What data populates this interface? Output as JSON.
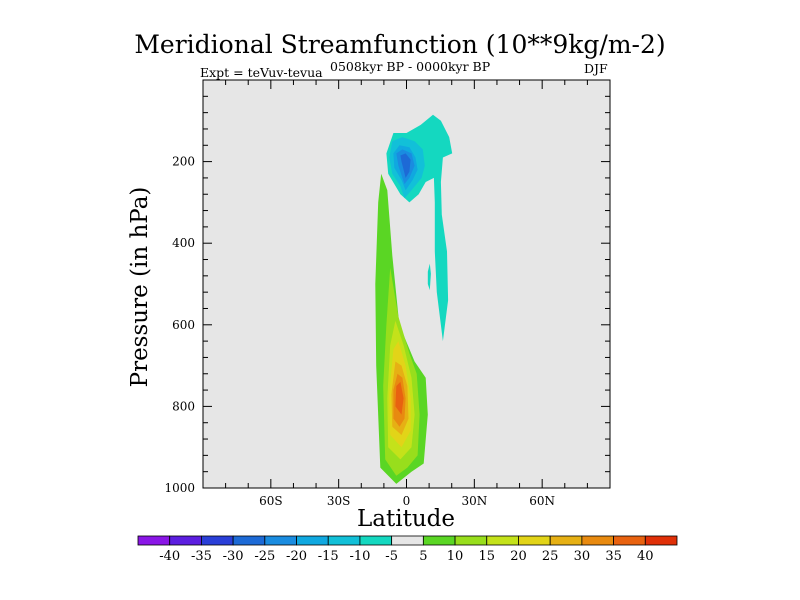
{
  "chart_data": {
    "type": "heatmap",
    "title": "Meridional Streamfunction (10**9kg/m-2)",
    "subtitle_left": "Expt = teVuv-tevua",
    "subtitle_center": "0508kyr BP - 0000kyr BP",
    "subtitle_right": "DJF",
    "xlabel": "Latitude",
    "ylabel": "Pressure (in hPa)",
    "x_ticks": [
      {
        "value": -60,
        "label": "60S"
      },
      {
        "value": -30,
        "label": "30S"
      },
      {
        "value": 0,
        "label": "0"
      },
      {
        "value": 30,
        "label": "30N"
      },
      {
        "value": 60,
        "label": "60N"
      }
    ],
    "y_ticks": [
      {
        "value": 200,
        "label": "200"
      },
      {
        "value": 400,
        "label": "400"
      },
      {
        "value": 600,
        "label": "600"
      },
      {
        "value": 800,
        "label": "800"
      },
      {
        "value": 1000,
        "label": "1000"
      }
    ],
    "xlim": [
      -90,
      90
    ],
    "ylim": [
      1000,
      0
    ],
    "background_color": "#e6e6e6",
    "colorbar": {
      "labels": [
        "-40",
        "-35",
        "-30",
        "-25",
        "-20",
        "-15",
        "-10",
        "-5",
        "5",
        "10",
        "15",
        "20",
        "25",
        "30",
        "35",
        "40"
      ],
      "colors": [
        "#8a16e6",
        "#5c1ee0",
        "#2a3fd8",
        "#1d6ad6",
        "#1a8ce0",
        "#10a8e0",
        "#12c0d8",
        "#14d8c0",
        "#e6e6e6",
        "#5ad624",
        "#98de1c",
        "#c4e21a",
        "#e2d418",
        "#e6b014",
        "#e88a10",
        "#e86210",
        "#e03008"
      ]
    },
    "contours": [
      {
        "level": "5",
        "color": "#5ad624",
        "points": [
          [
            -11.6,
            950
          ],
          [
            -13.4,
            700
          ],
          [
            -13.8,
            500
          ],
          [
            -12.5,
            300
          ],
          [
            -11.2,
            230
          ],
          [
            -8.5,
            270
          ],
          [
            -6.3,
            430
          ],
          [
            -3.2,
            600
          ],
          [
            3.6,
            690
          ],
          [
            8.5,
            730
          ],
          [
            9.4,
            820
          ],
          [
            7.6,
            940
          ],
          [
            2.2,
            960
          ],
          [
            -4.5,
            990
          ]
        ]
      },
      {
        "level": "10",
        "color": "#98de1c",
        "points": [
          [
            -9.4,
            930
          ],
          [
            -10.3,
            750
          ],
          [
            -8.9,
            600
          ],
          [
            -7.2,
            460
          ],
          [
            -3.6,
            580
          ],
          [
            1.3,
            670
          ],
          [
            4.5,
            720
          ],
          [
            5.8,
            820
          ],
          [
            4.9,
            920
          ],
          [
            0.4,
            950
          ],
          [
            -4.5,
            970
          ]
        ]
      },
      {
        "level": "15",
        "color": "#c4e21a",
        "points": [
          [
            -8.1,
            900
          ],
          [
            -8.5,
            780
          ],
          [
            -7.2,
            650
          ],
          [
            -4.9,
            590
          ],
          [
            -1.3,
            650
          ],
          [
            2.2,
            730
          ],
          [
            3.6,
            820
          ],
          [
            2.2,
            900
          ],
          [
            -2.7,
            930
          ]
        ]
      },
      {
        "level": "20",
        "color": "#e2d418",
        "points": [
          [
            -7.2,
            870
          ],
          [
            -7.6,
            770
          ],
          [
            -5.8,
            660
          ],
          [
            -3.6,
            640
          ],
          [
            -0.4,
            700
          ],
          [
            1.8,
            780
          ],
          [
            1.8,
            860
          ],
          [
            -2.2,
            900
          ]
        ]
      },
      {
        "level": "25",
        "color": "#e6b014",
        "points": [
          [
            -6.3,
            850
          ],
          [
            -6.7,
            770
          ],
          [
            -4.9,
            690
          ],
          [
            -2.2,
            700
          ],
          [
            0.4,
            750
          ],
          [
            0.9,
            830
          ],
          [
            -2.2,
            870
          ]
        ]
      },
      {
        "level": "30",
        "color": "#e88a10",
        "points": [
          [
            -5.8,
            830
          ],
          [
            -5.8,
            760
          ],
          [
            -4.0,
            720
          ],
          [
            -1.8,
            730
          ],
          [
            -0.4,
            780
          ],
          [
            -0.9,
            830
          ],
          [
            -3.1,
            850
          ]
        ]
      },
      {
        "level": "35",
        "color": "#e86210",
        "points": [
          [
            -4.9,
            800
          ],
          [
            -4.5,
            750
          ],
          [
            -2.7,
            740
          ],
          [
            -1.3,
            780
          ],
          [
            -2.2,
            820
          ]
        ]
      },
      {
        "level": "-5",
        "color": "#14d8c0",
        "points": [
          [
            -8.1,
            230
          ],
          [
            -8.9,
            180
          ],
          [
            -5.8,
            130
          ],
          [
            0,
            130
          ],
          [
            6.3,
            110
          ],
          [
            11.7,
            85
          ],
          [
            15.2,
            100
          ],
          [
            18.9,
            140
          ],
          [
            20.2,
            180
          ],
          [
            16.1,
            190
          ],
          [
            15.2,
            250
          ],
          [
            15.6,
            330
          ],
          [
            17.9,
            420
          ],
          [
            18.4,
            540
          ],
          [
            16.1,
            640
          ],
          [
            13.4,
            520
          ],
          [
            12.5,
            420
          ],
          [
            12.5,
            300
          ],
          [
            12.1,
            240
          ],
          [
            8.5,
            250
          ],
          [
            5.4,
            280
          ],
          [
            1.3,
            300
          ],
          [
            -2.7,
            280
          ]
        ]
      },
      {
        "level": "-10",
        "color": "#12c0d8",
        "points": [
          [
            -6.3,
            230
          ],
          [
            -7.6,
            190
          ],
          [
            -6.3,
            150
          ],
          [
            -1.8,
            140
          ],
          [
            3.6,
            150
          ],
          [
            7.2,
            170
          ],
          [
            8.1,
            210
          ],
          [
            6.7,
            240
          ],
          [
            2.2,
            270
          ],
          [
            -0.9,
            290
          ],
          [
            -2.7,
            260
          ]
        ]
      },
      {
        "level": "-15",
        "color": "#10a8e0",
        "points": [
          [
            -5.4,
            215
          ],
          [
            -5.8,
            180
          ],
          [
            -3.1,
            160
          ],
          [
            1.3,
            165
          ],
          [
            4.0,
            190
          ],
          [
            4.9,
            220
          ],
          [
            2.7,
            245
          ],
          [
            -0.4,
            270
          ],
          [
            -2.2,
            245
          ]
        ]
      },
      {
        "level": "-20",
        "color": "#1a8ce0",
        "points": [
          [
            -3.6,
            210
          ],
          [
            -4.5,
            180
          ],
          [
            -1.8,
            170
          ],
          [
            2.2,
            180
          ],
          [
            3.6,
            210
          ],
          [
            1.3,
            240
          ],
          [
            -0.9,
            255
          ]
        ]
      },
      {
        "level": "-25",
        "color": "#1d6ad6",
        "points": [
          [
            -2.2,
            200
          ],
          [
            -2.7,
            185
          ],
          [
            -0.4,
            180
          ],
          [
            1.8,
            195
          ],
          [
            1.3,
            225
          ],
          [
            -0.4,
            240
          ],
          [
            -1.3,
            220
          ]
        ]
      },
      {
        "level": "-5",
        "color": "#14d8c0",
        "points": [
          [
            9.4,
            470
          ],
          [
            10.3,
            450
          ],
          [
            10.8,
            475
          ],
          [
            10.3,
            515
          ],
          [
            9.4,
            500
          ]
        ]
      }
    ]
  }
}
